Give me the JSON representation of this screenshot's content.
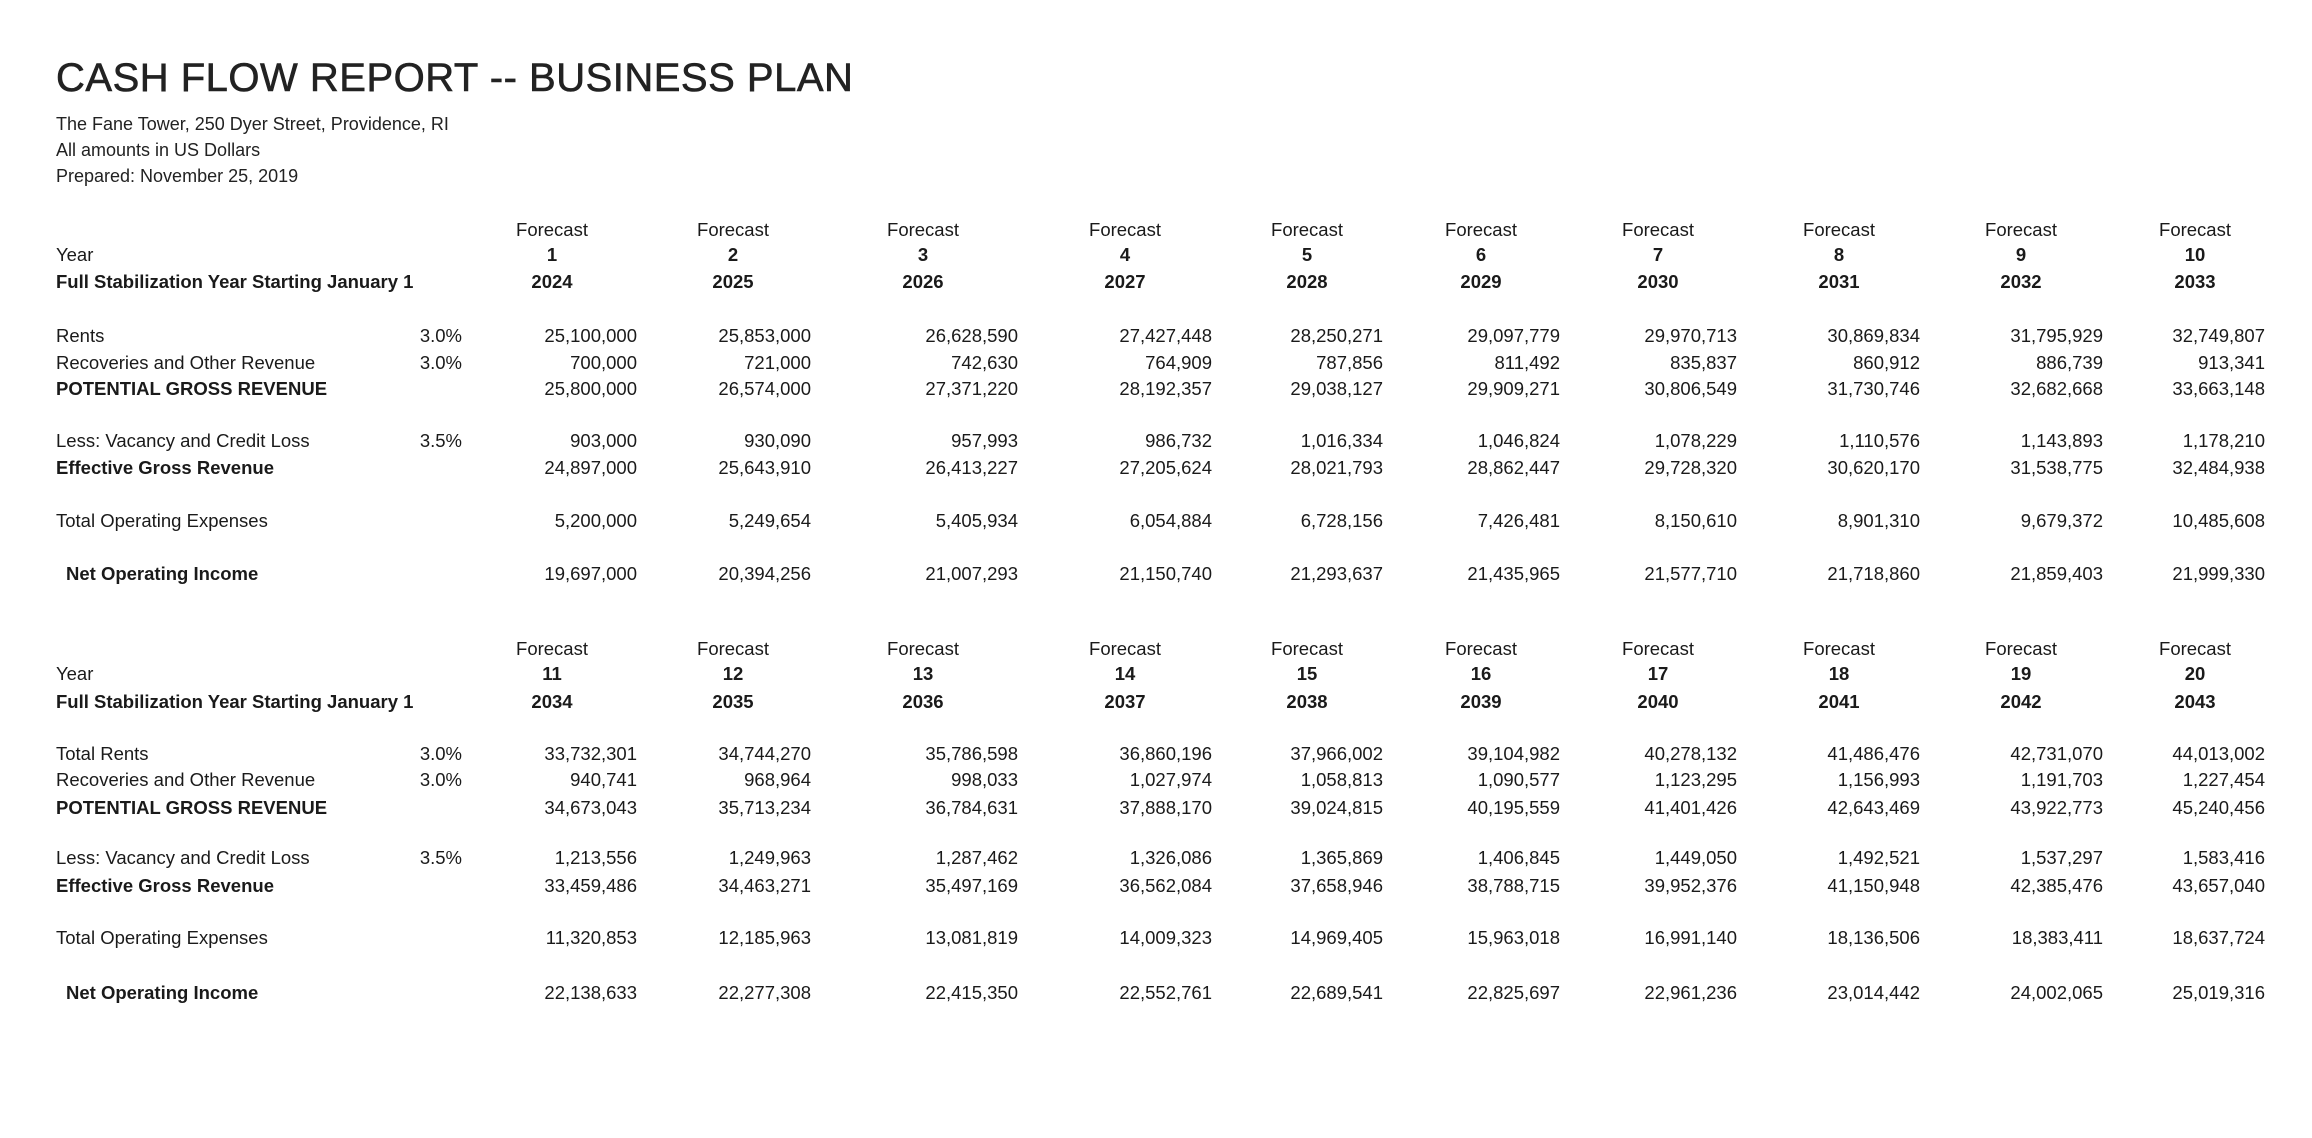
{
  "report": {
    "title": "CASH FLOW REPORT -- BUSINESS PLAN",
    "address": "The Fane Tower, 250 Dyer Street, Providence, RI",
    "currency_note": "All amounts in US Dollars",
    "prepared": "Prepared: November 25, 2019"
  },
  "tables": [
    {
      "header_labels": {
        "year": "Year",
        "stabilization": "Full Stabilization Year Starting January 1"
      },
      "forecast_label": "Forecast",
      "periods": [
        "1",
        "2",
        "3",
        "4",
        "5",
        "6",
        "7",
        "8",
        "9",
        "10"
      ],
      "years": [
        "2024",
        "2025",
        "2026",
        "2027",
        "2028",
        "2029",
        "2030",
        "2031",
        "2032",
        "2033"
      ],
      "rows": [
        {
          "label": "Rents",
          "pct": "3.0%",
          "values": [
            "25,100,000",
            "25,853,000",
            "26,628,590",
            "27,427,448",
            "28,250,271",
            "29,097,779",
            "29,970,713",
            "30,869,834",
            "31,795,929",
            "32,749,807"
          ]
        },
        {
          "label": "Recoveries and Other Revenue",
          "pct": "3.0%",
          "values": [
            "700,000",
            "721,000",
            "742,630",
            "764,909",
            "787,856",
            "811,492",
            "835,837",
            "860,912",
            "886,739",
            "913,341"
          ]
        },
        {
          "label": "POTENTIAL GROSS REVENUE",
          "pct": "",
          "values": [
            "25,800,000",
            "26,574,000",
            "27,371,220",
            "28,192,357",
            "29,038,127",
            "29,909,271",
            "30,806,549",
            "31,730,746",
            "32,682,668",
            "33,663,148"
          ]
        },
        {
          "label": "Less: Vacancy and Credit Loss",
          "pct": "3.5%",
          "values": [
            "903,000",
            "930,090",
            "957,993",
            "986,732",
            "1,016,334",
            "1,046,824",
            "1,078,229",
            "1,110,576",
            "1,143,893",
            "1,178,210"
          ]
        },
        {
          "label": "Effective Gross Revenue",
          "pct": "",
          "values": [
            "24,897,000",
            "25,643,910",
            "26,413,227",
            "27,205,624",
            "28,021,793",
            "28,862,447",
            "29,728,320",
            "30,620,170",
            "31,538,775",
            "32,484,938"
          ]
        },
        {
          "label": "Total Operating Expenses",
          "pct": "",
          "values": [
            "5,200,000",
            "5,249,654",
            "5,405,934",
            "6,054,884",
            "6,728,156",
            "7,426,481",
            "8,150,610",
            "8,901,310",
            "9,679,372",
            "10,485,608"
          ]
        },
        {
          "label": "Net Operating Income",
          "pct": "",
          "values": [
            "19,697,000",
            "20,394,256",
            "21,007,293",
            "21,150,740",
            "21,293,637",
            "21,435,965",
            "21,577,710",
            "21,718,860",
            "21,859,403",
            "21,999,330"
          ]
        }
      ]
    },
    {
      "header_labels": {
        "year": "Year",
        "stabilization": "Full Stabilization Year Starting January 1"
      },
      "forecast_label": "Forecast",
      "periods": [
        "11",
        "12",
        "13",
        "14",
        "15",
        "16",
        "17",
        "18",
        "19",
        "20"
      ],
      "years": [
        "2034",
        "2035",
        "2036",
        "2037",
        "2038",
        "2039",
        "2040",
        "2041",
        "2042",
        "2043"
      ],
      "rows": [
        {
          "label": "Total Rents",
          "pct": "3.0%",
          "values": [
            "33,732,301",
            "34,744,270",
            "35,786,598",
            "36,860,196",
            "37,966,002",
            "39,104,982",
            "40,278,132",
            "41,486,476",
            "42,731,070",
            "44,013,002"
          ]
        },
        {
          "label": "Recoveries and Other Revenue",
          "pct": "3.0%",
          "values": [
            "940,741",
            "968,964",
            "998,033",
            "1,027,974",
            "1,058,813",
            "1,090,577",
            "1,123,295",
            "1,156,993",
            "1,191,703",
            "1,227,454"
          ]
        },
        {
          "label": "POTENTIAL GROSS REVENUE",
          "pct": "",
          "values": [
            "34,673,043",
            "35,713,234",
            "36,784,631",
            "37,888,170",
            "39,024,815",
            "40,195,559",
            "41,401,426",
            "42,643,469",
            "43,922,773",
            "45,240,456"
          ]
        },
        {
          "label": "Less: Vacancy and Credit Loss",
          "pct": "3.5%",
          "values": [
            "1,213,556",
            "1,249,963",
            "1,287,462",
            "1,326,086",
            "1,365,869",
            "1,406,845",
            "1,449,050",
            "1,492,521",
            "1,537,297",
            "1,583,416"
          ]
        },
        {
          "label": "Effective Gross Revenue",
          "pct": "",
          "values": [
            "33,459,486",
            "34,463,271",
            "35,497,169",
            "36,562,084",
            "37,658,946",
            "38,788,715",
            "39,952,376",
            "41,150,948",
            "42,385,476",
            "43,657,040"
          ]
        },
        {
          "label": "Total Operating Expenses",
          "pct": "",
          "values": [
            "11,320,853",
            "12,185,963",
            "13,081,819",
            "14,009,323",
            "14,969,405",
            "15,963,018",
            "16,991,140",
            "18,136,506",
            "18,383,411",
            "18,637,724"
          ]
        },
        {
          "label": "Net Operating Income",
          "pct": "",
          "values": [
            "22,138,633",
            "22,277,308",
            "22,415,350",
            "22,552,761",
            "22,689,541",
            "22,825,697",
            "22,961,236",
            "23,014,442",
            "24,002,065",
            "25,019,316"
          ]
        }
      ]
    }
  ]
}
